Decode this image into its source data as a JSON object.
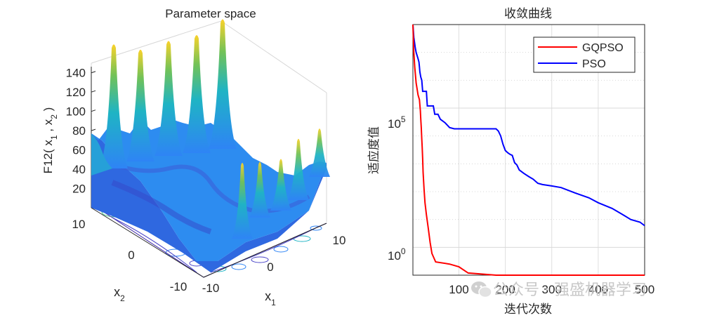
{
  "chart_data": [
    {
      "type": "surface3d",
      "title": "Parameter space",
      "zlabel_main": "F12( x",
      "zlabel_sub1": "1",
      "zlabel_mid": " , x",
      "zlabel_sub2": "2",
      "zlabel_end": " )",
      "xlabel_main": "x",
      "xlabel_sub": "1",
      "ylabel_main": "x",
      "ylabel_sub": "2",
      "z_ticks": [
        "20",
        "40",
        "60",
        "80",
        "100",
        "120",
        "140"
      ],
      "x_ticks": [
        "-10",
        "0",
        "10"
      ],
      "y_ticks": [
        "10",
        "0",
        "-10"
      ],
      "z_range": [
        0,
        150
      ],
      "x_range": [
        -10,
        10
      ],
      "y_range": [
        -10,
        10
      ],
      "colormap": [
        "#3e26a8",
        "#2e84f5",
        "#1fb4c4",
        "#4cc37a",
        "#c3bf30",
        "#f9d22b"
      ],
      "peaks_back_row": [
        138,
        122,
        126,
        130,
        145
      ],
      "peaks_side_row": [
        80,
        55,
        50,
        62,
        46
      ]
    },
    {
      "type": "line",
      "title": "收敛曲线",
      "xlabel": "迭代次数",
      "ylabel": "适应度值",
      "yscale": "log",
      "xlim": [
        1,
        500
      ],
      "ylim_exp": [
        -1,
        8
      ],
      "x_ticks": [
        "100",
        "200",
        "300",
        "400",
        "500"
      ],
      "y_ticks": [
        {
          "base": "10",
          "exp": "5"
        },
        {
          "base": "10",
          "exp": "0"
        }
      ],
      "legend_position": "top-right",
      "series": [
        {
          "name": "GQPSO",
          "color": "#ff0000",
          "points": [
            [
              1,
              130000000.0
            ],
            [
              3,
              10000000.0
            ],
            [
              5,
              3000000.0
            ],
            [
              8,
              800000.0
            ],
            [
              12,
              300000.0
            ],
            [
              15,
              200000.0
            ],
            [
              17,
              80000.0
            ],
            [
              18,
              40000.0
            ],
            [
              19,
              20000.0
            ],
            [
              20,
              8000.0
            ],
            [
              21,
              4000.0
            ],
            [
              22,
              1500.0
            ],
            [
              23,
              500.0
            ],
            [
              25,
              120.0
            ],
            [
              27,
              40
            ],
            [
              30,
              15
            ],
            [
              34,
              5
            ],
            [
              38,
              1.5
            ],
            [
              42,
              0.6
            ],
            [
              50,
              0.3
            ],
            [
              80,
              0.25
            ],
            [
              100,
              0.2
            ],
            [
              120,
              0.12
            ],
            [
              180,
              0.1
            ],
            [
              500,
              0.1
            ]
          ]
        },
        {
          "name": "PSO",
          "color": "#0000ff",
          "points": [
            [
              1,
              130000000.0
            ],
            [
              3,
              35000000.0
            ],
            [
              6,
              15000000.0
            ],
            [
              8,
              10000000.0
            ],
            [
              12,
              6000000.0
            ],
            [
              14,
              4500000.0
            ],
            [
              15,
              3000000.0
            ],
            [
              16,
              2000000.0
            ],
            [
              18,
              1300000.0
            ],
            [
              20,
              1000000.0
            ],
            [
              22,
              400000.0
            ],
            [
              30,
              400000.0
            ],
            [
              32,
              120000.0
            ],
            [
              45,
              120000.0
            ],
            [
              48,
              60000.0
            ],
            [
              55,
              60000.0
            ],
            [
              60,
              40000.0
            ],
            [
              70,
              30000.0
            ],
            [
              80,
              20000.0
            ],
            [
              90,
              18000.0
            ],
            [
              180,
              18000.0
            ],
            [
              185,
              15000.0
            ],
            [
              190,
              10000.0
            ],
            [
              195,
              5000.0
            ],
            [
              200,
              3000.0
            ],
            [
              205,
              2500.0
            ],
            [
              210,
              2200.0
            ],
            [
              215,
              2000.0
            ],
            [
              220,
              1100.0
            ],
            [
              225,
              900
            ],
            [
              230,
              600
            ],
            [
              240,
              450
            ],
            [
              250,
              350
            ],
            [
              260,
              280
            ],
            [
              270,
              200
            ],
            [
              280,
              180
            ],
            [
              300,
              160
            ],
            [
              320,
              140
            ],
            [
              350,
              90
            ],
            [
              380,
              60
            ],
            [
              400,
              40
            ],
            [
              430,
              25
            ],
            [
              450,
              16
            ],
            [
              470,
              10
            ],
            [
              490,
              8
            ],
            [
              500,
              6
            ]
          ]
        }
      ]
    }
  ],
  "watermark": {
    "text": "公众号 · 强盛机器学习"
  }
}
